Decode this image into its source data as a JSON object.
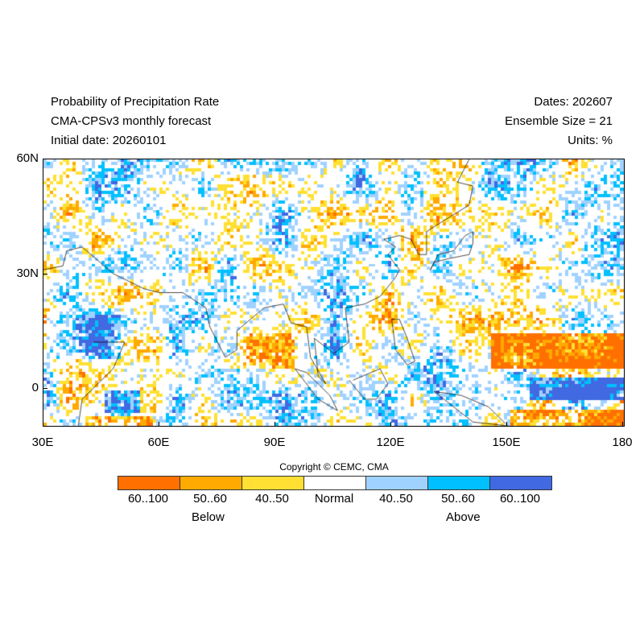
{
  "header": {
    "title": "Probability of Precipitation Rate",
    "model": "CMA-CPSv3 monthly forecast",
    "initial": "Initial date: 20260101",
    "dates": "Dates: 202607",
    "ensemble": "Ensemble Size = 21",
    "units": "Units: %"
  },
  "map": {
    "lon_range": [
      30,
      180
    ],
    "lat_range": [
      -10,
      60
    ],
    "lat_ticks": [
      {
        "label": "60N",
        "value": 60
      },
      {
        "label": "30N",
        "value": 30
      },
      {
        "label": "0",
        "value": 0
      }
    ],
    "lon_ticks": [
      {
        "label": "30E",
        "value": 30
      },
      {
        "label": "60E",
        "value": 60
      },
      {
        "label": "90E",
        "value": 90
      },
      {
        "label": "120E",
        "value": 120
      },
      {
        "label": "150E",
        "value": 150
      },
      {
        "label": "180",
        "value": 180
      }
    ]
  },
  "legend": {
    "copyright": "Copyright © CEMC, CMA",
    "bins": [
      {
        "label": "60..100",
        "color": "#ff7000"
      },
      {
        "label": "50..60",
        "color": "#ffaa00"
      },
      {
        "label": "40..50",
        "color": "#ffe033"
      },
      {
        "label": "Normal",
        "color": "#ffffff"
      },
      {
        "label": "40..50",
        "color": "#a0d2ff"
      },
      {
        "label": "50..60",
        "color": "#00c0ff"
      },
      {
        "label": "60..100",
        "color": "#4169e1"
      }
    ],
    "below": "Below",
    "above": "Above"
  }
}
